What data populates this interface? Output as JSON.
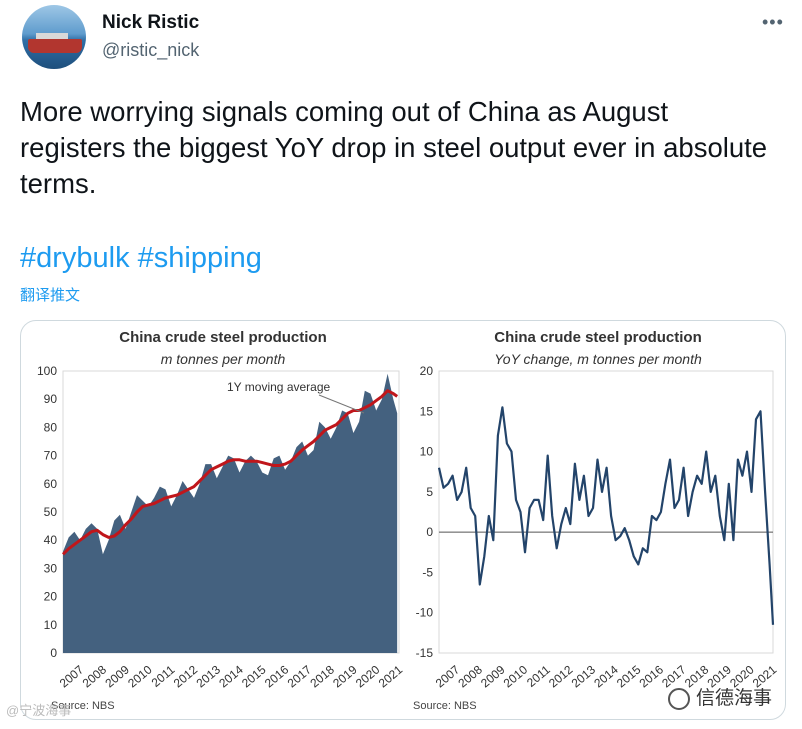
{
  "user": {
    "name": "Nick Ristic",
    "handle": "@ristic_nick"
  },
  "more_icon": "more-dots-icon",
  "tweet_text": "More worrying signals coming out of China as August registers the biggest YoY drop in steel output ever in absolute terms.",
  "hashtags": "#drybulk #shipping",
  "translate_label": "翻译推文",
  "watermarks": {
    "left": "@宁波海事",
    "right": "信德海事"
  },
  "chart_data": [
    {
      "type": "area",
      "title": "China crude steel production",
      "subtitle": "m tonnes per month",
      "annotation": "1Y moving average",
      "source": "Source: NBS",
      "xlabel": "",
      "ylabel": "",
      "ylim": [
        0,
        100
      ],
      "yticks": [
        0,
        10,
        20,
        30,
        40,
        50,
        60,
        70,
        80,
        90,
        100
      ],
      "xticks": [
        "2007",
        "2008",
        "2009",
        "2010",
        "2011",
        "2012",
        "2013",
        "2014",
        "2015",
        "2016",
        "2017",
        "2018",
        "2019",
        "2020",
        "2021"
      ],
      "x": [
        2007.0,
        2007.25,
        2007.5,
        2007.75,
        2008.0,
        2008.25,
        2008.5,
        2008.75,
        2009.0,
        2009.25,
        2009.5,
        2009.75,
        2010.0,
        2010.25,
        2010.5,
        2010.75,
        2011.0,
        2011.25,
        2011.5,
        2011.75,
        2012.0,
        2012.25,
        2012.5,
        2012.75,
        2013.0,
        2013.25,
        2013.5,
        2013.75,
        2014.0,
        2014.25,
        2014.5,
        2014.75,
        2015.0,
        2015.25,
        2015.5,
        2015.75,
        2016.0,
        2016.25,
        2016.5,
        2016.75,
        2017.0,
        2017.25,
        2017.5,
        2017.75,
        2018.0,
        2018.25,
        2018.5,
        2018.75,
        2019.0,
        2019.25,
        2019.5,
        2019.75,
        2020.0,
        2020.25,
        2020.5,
        2020.75,
        2021.0,
        2021.25,
        2021.5,
        2021.67
      ],
      "series": [
        {
          "name": "",
          "values": [
            36,
            41,
            43,
            40,
            44,
            46,
            44,
            35,
            40,
            47,
            49,
            44,
            50,
            56,
            54,
            52,
            55,
            59,
            58,
            52,
            56,
            61,
            58,
            55,
            60,
            67,
            67,
            62,
            66,
            70,
            69,
            64,
            68,
            70,
            68,
            64,
            63,
            69,
            70,
            65,
            68,
            73,
            75,
            70,
            72,
            82,
            80,
            76,
            80,
            86,
            85,
            78,
            82,
            93,
            92,
            86,
            90,
            99,
            90,
            85
          ]
        },
        {
          "name": "1Y moving average",
          "values": [
            35,
            37,
            38.5,
            40,
            41.5,
            43,
            43.5,
            42,
            41,
            41.5,
            43,
            45.5,
            47.5,
            50,
            52,
            52.5,
            53,
            54,
            55,
            55.5,
            56,
            57,
            58,
            59,
            61,
            63,
            65,
            66,
            67,
            68,
            68.5,
            68.5,
            68,
            68,
            68,
            67.5,
            67,
            66.5,
            66.5,
            67,
            68,
            70,
            72,
            73.5,
            75,
            77,
            79,
            80,
            81,
            83,
            85,
            86,
            86,
            87,
            88,
            89.5,
            91,
            93,
            92,
            91
          ]
        }
      ]
    },
    {
      "type": "line",
      "title": "China crude steel production",
      "subtitle": "YoY change, m tonnes per month",
      "source": "Source: NBS",
      "xlabel": "",
      "ylabel": "",
      "ylim": [
        -15,
        20
      ],
      "yticks": [
        -15,
        -10,
        -5,
        0,
        5,
        10,
        15,
        20
      ],
      "xticks": [
        "2007",
        "2008",
        "2009",
        "2010",
        "2011",
        "2012",
        "2013",
        "2014",
        "2015",
        "2016",
        "2017",
        "2018",
        "2019",
        "2020",
        "2021"
      ],
      "x": [
        2007.0,
        2007.2,
        2007.4,
        2007.6,
        2007.8,
        2008.0,
        2008.2,
        2008.4,
        2008.6,
        2008.8,
        2009.0,
        2009.2,
        2009.4,
        2009.6,
        2009.8,
        2010.0,
        2010.2,
        2010.4,
        2010.6,
        2010.8,
        2011.0,
        2011.2,
        2011.4,
        2011.6,
        2011.8,
        2012.0,
        2012.2,
        2012.4,
        2012.6,
        2012.8,
        2013.0,
        2013.2,
        2013.4,
        2013.6,
        2013.8,
        2014.0,
        2014.2,
        2014.4,
        2014.6,
        2014.8,
        2015.0,
        2015.2,
        2015.4,
        2015.6,
        2015.8,
        2016.0,
        2016.2,
        2016.4,
        2016.6,
        2016.8,
        2017.0,
        2017.2,
        2017.4,
        2017.6,
        2017.8,
        2018.0,
        2018.2,
        2018.4,
        2018.6,
        2018.8,
        2019.0,
        2019.2,
        2019.4,
        2019.6,
        2019.8,
        2020.0,
        2020.2,
        2020.4,
        2020.6,
        2020.8,
        2021.0,
        2021.2,
        2021.4,
        2021.6,
        2021.75
      ],
      "series": [
        {
          "name": "",
          "values": [
            8,
            5.5,
            6,
            7,
            4,
            5,
            8,
            3,
            2,
            -6.5,
            -3,
            2,
            -1,
            12,
            15.5,
            11,
            10,
            4,
            2.5,
            -2.5,
            3,
            4,
            4,
            1.5,
            9.5,
            2,
            -2,
            1,
            3,
            1,
            8.5,
            4,
            7,
            2,
            3,
            9,
            5,
            8,
            2,
            -1,
            -0.5,
            0.5,
            -1,
            -3,
            -4,
            -2,
            -2.5,
            2,
            1.5,
            2.5,
            6,
            9,
            3,
            4,
            8,
            2,
            5,
            7,
            6,
            10,
            5,
            7,
            2,
            -1,
            6,
            -1,
            9,
            7,
            10,
            5,
            14,
            15,
            5,
            -4,
            -11.5
          ]
        }
      ]
    }
  ]
}
